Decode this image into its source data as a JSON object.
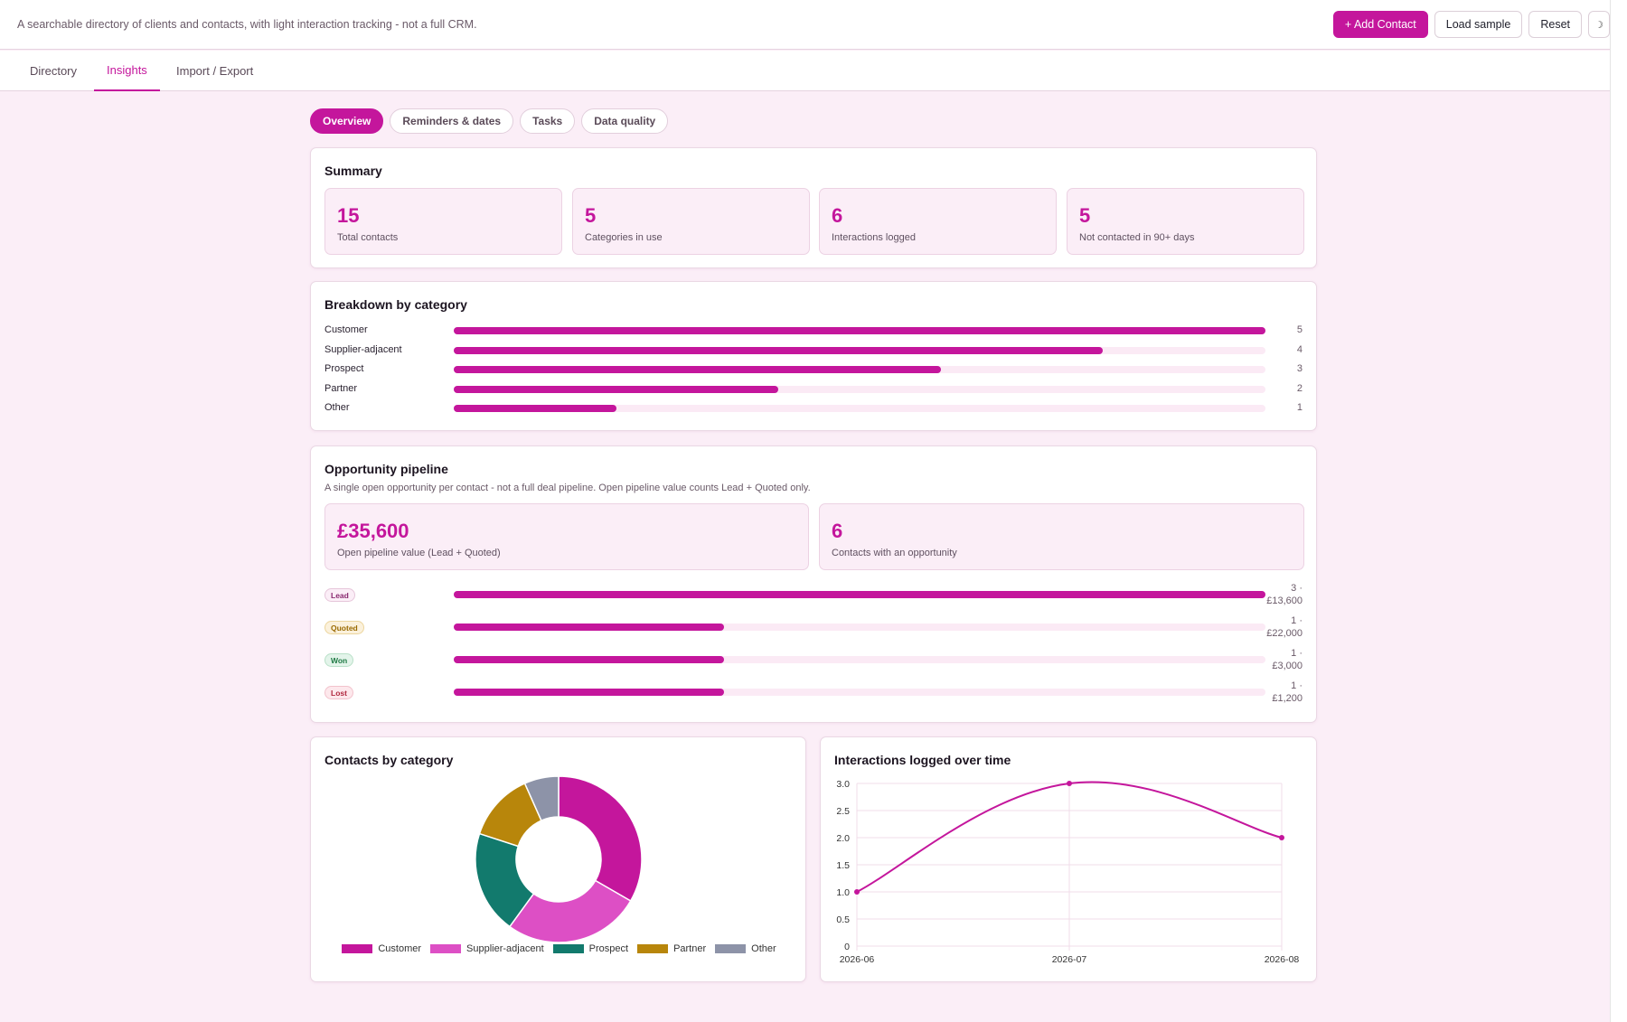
{
  "header": {
    "tagline": "A searchable directory of clients and contacts, with light interaction tracking - not a full CRM.",
    "add_contact": "+ Add Contact",
    "load_sample": "Load sample",
    "reset": "Reset",
    "theme_icon": "☽"
  },
  "tabs": [
    {
      "label": "Directory",
      "active": false
    },
    {
      "label": "Insights",
      "active": true
    },
    {
      "label": "Import / Export",
      "active": false
    }
  ],
  "subtabs": [
    {
      "label": "Overview",
      "active": true
    },
    {
      "label": "Reminders & dates",
      "active": false
    },
    {
      "label": "Tasks",
      "active": false
    },
    {
      "label": "Data quality",
      "active": false
    }
  ],
  "summary": {
    "title": "Summary",
    "stats": [
      {
        "value": "15",
        "label": "Total contacts"
      },
      {
        "value": "5",
        "label": "Categories in use"
      },
      {
        "value": "6",
        "label": "Interactions logged"
      },
      {
        "value": "5",
        "label": "Not contacted in 90+ days"
      }
    ]
  },
  "breakdown": {
    "title": "Breakdown by category",
    "max": 5,
    "rows": [
      {
        "label": "Customer",
        "count": 5
      },
      {
        "label": "Supplier-adjacent",
        "count": 4
      },
      {
        "label": "Prospect",
        "count": 3
      },
      {
        "label": "Partner",
        "count": 2
      },
      {
        "label": "Other",
        "count": 1
      }
    ]
  },
  "pipeline": {
    "title": "Opportunity pipeline",
    "subtitle": "A single open opportunity per contact - not a full deal pipeline. Open pipeline value counts Lead + Quoted only.",
    "stats": [
      {
        "value": "£35,600",
        "label": "Open pipeline value (Lead + Quoted)"
      },
      {
        "value": "6",
        "label": "Contacts with an opportunity"
      }
    ],
    "max": 3,
    "rows": [
      {
        "stage": "Lead",
        "count": 3,
        "line1": "3 ·",
        "line2": "£13,600",
        "bg": "#fbeef7",
        "border": "#e6c6da",
        "color": "#8a2a70"
      },
      {
        "stage": "Quoted",
        "count": 1,
        "line1": "1 ·",
        "line2": "£22,000",
        "bg": "#fbf1dc",
        "border": "#ecd59c",
        "color": "#9a6a00"
      },
      {
        "stage": "Won",
        "count": 1,
        "line1": "1 ·",
        "line2": "£3,000",
        "bg": "#e3f4ea",
        "border": "#b9e0c8",
        "color": "#1f7a44"
      },
      {
        "stage": "Lost",
        "count": 1,
        "line1": "1 ·",
        "line2": "£1,200",
        "bg": "#fde8ec",
        "border": "#f2c2cc",
        "color": "#b0283f"
      }
    ]
  },
  "donut_card": {
    "title": "Contacts by category"
  },
  "line_card": {
    "title": "Interactions logged over time"
  },
  "chart_data": [
    {
      "type": "pie",
      "title": "Contacts by category",
      "categories": [
        "Customer",
        "Supplier-adjacent",
        "Prospect",
        "Partner",
        "Other"
      ],
      "values": [
        5,
        4,
        3,
        2,
        1
      ],
      "colors": [
        "#c4169c",
        "#dd4fc5",
        "#127a6d",
        "#b8860b",
        "#8d93a8"
      ],
      "legend": "bottom"
    },
    {
      "type": "line",
      "title": "Interactions logged over time",
      "x": [
        "2026-06",
        "2026-07",
        "2026-08"
      ],
      "series": [
        {
          "values": [
            1,
            3,
            2
          ]
        }
      ],
      "ylim": [
        0,
        3
      ],
      "yticks": [
        "0",
        "0.5",
        "1.0",
        "1.5",
        "2.0",
        "2.5",
        "3.0"
      ],
      "color": "#c4169c",
      "grid": true
    }
  ]
}
